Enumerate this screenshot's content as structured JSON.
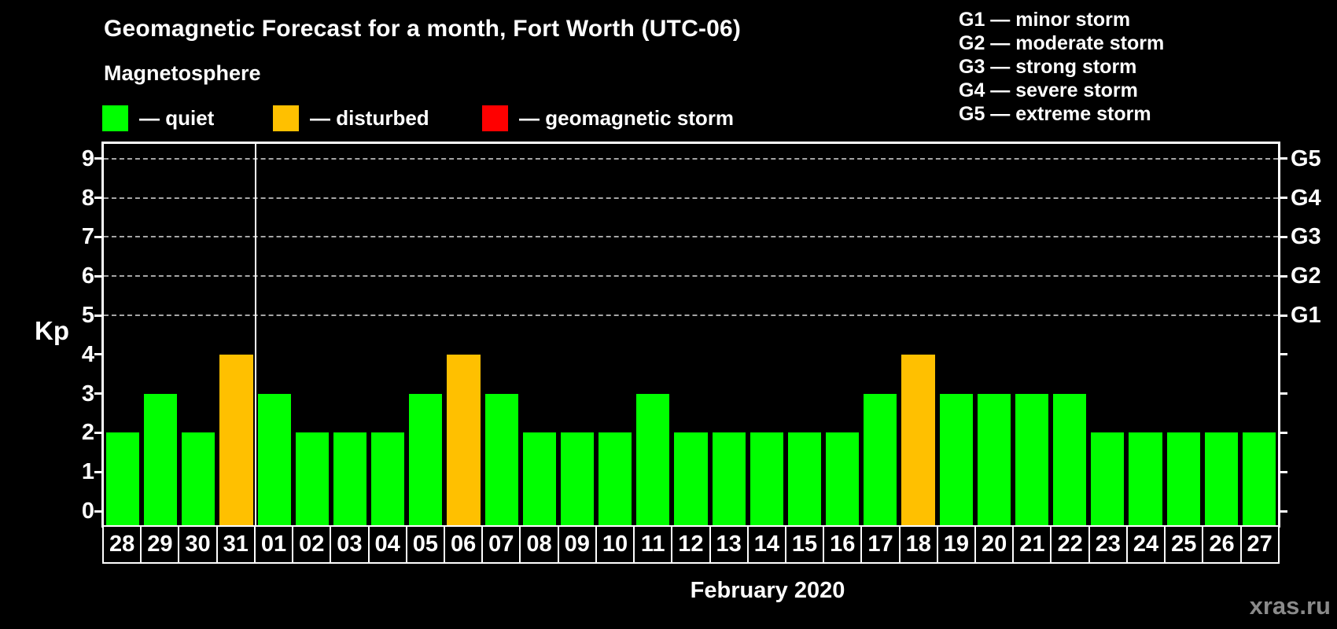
{
  "header": {
    "title": "Geomagnetic Forecast for a month, Fort Worth (UTC-06)",
    "subtitle": "Magnetosphere"
  },
  "legend": {
    "items": [
      {
        "status": "quiet",
        "label": "— quiet",
        "color": "#00ff00"
      },
      {
        "status": "disturbed",
        "label": "— disturbed",
        "color": "#ffc000"
      },
      {
        "status": "storm",
        "label": "— geomagnetic storm",
        "color": "#ff0000"
      }
    ]
  },
  "storm_scale_legend": {
    "items": [
      {
        "text": "G1 — minor storm"
      },
      {
        "text": "G2 — moderate storm"
      },
      {
        "text": "G3 — strong storm"
      },
      {
        "text": "G4 — severe storm"
      },
      {
        "text": "G5 — extreme storm"
      }
    ]
  },
  "watermark": "xras.ru",
  "colors": {
    "background": "#000000",
    "axis": "#ffffff",
    "grid": "#a6a6a6",
    "quiet": "#00ff00",
    "disturbed": "#ffc000",
    "storm": "#ff0000",
    "watermark_text": "#8a8a8a"
  },
  "chart_data": {
    "type": "bar",
    "title": "Geomagnetic Forecast for a month, Fort Worth (UTC-06)",
    "xlabel": "February 2020",
    "ylabel": "Kp",
    "ylim": [
      0,
      9
    ],
    "yticks": [
      0,
      1,
      2,
      3,
      4,
      5,
      6,
      7,
      8,
      9
    ],
    "grid_dashed_at_kp": [
      5,
      6,
      7,
      8,
      9
    ],
    "right_axis_labels": [
      {
        "kp": 5,
        "label": "G1"
      },
      {
        "kp": 6,
        "label": "G2"
      },
      {
        "kp": 7,
        "label": "G3"
      },
      {
        "kp": 8,
        "label": "G4"
      },
      {
        "kp": 9,
        "label": "G5"
      }
    ],
    "month_separator_after_index": 3,
    "days": [
      {
        "date": "28",
        "kp": 2,
        "status": "quiet"
      },
      {
        "date": "29",
        "kp": 3,
        "status": "quiet"
      },
      {
        "date": "30",
        "kp": 2,
        "status": "quiet"
      },
      {
        "date": "31",
        "kp": 4,
        "status": "disturbed"
      },
      {
        "date": "01",
        "kp": 3,
        "status": "quiet"
      },
      {
        "date": "02",
        "kp": 2,
        "status": "quiet"
      },
      {
        "date": "03",
        "kp": 2,
        "status": "quiet"
      },
      {
        "date": "04",
        "kp": 2,
        "status": "quiet"
      },
      {
        "date": "05",
        "kp": 3,
        "status": "quiet"
      },
      {
        "date": "06",
        "kp": 4,
        "status": "disturbed"
      },
      {
        "date": "07",
        "kp": 3,
        "status": "quiet"
      },
      {
        "date": "08",
        "kp": 2,
        "status": "quiet"
      },
      {
        "date": "09",
        "kp": 2,
        "status": "quiet"
      },
      {
        "date": "10",
        "kp": 2,
        "status": "quiet"
      },
      {
        "date": "11",
        "kp": 3,
        "status": "quiet"
      },
      {
        "date": "12",
        "kp": 2,
        "status": "quiet"
      },
      {
        "date": "13",
        "kp": 2,
        "status": "quiet"
      },
      {
        "date": "14",
        "kp": 2,
        "status": "quiet"
      },
      {
        "date": "15",
        "kp": 2,
        "status": "quiet"
      },
      {
        "date": "16",
        "kp": 2,
        "status": "quiet"
      },
      {
        "date": "17",
        "kp": 3,
        "status": "quiet"
      },
      {
        "date": "18",
        "kp": 4,
        "status": "disturbed"
      },
      {
        "date": "19",
        "kp": 3,
        "status": "quiet"
      },
      {
        "date": "20",
        "kp": 3,
        "status": "quiet"
      },
      {
        "date": "21",
        "kp": 3,
        "status": "quiet"
      },
      {
        "date": "22",
        "kp": 3,
        "status": "quiet"
      },
      {
        "date": "23",
        "kp": 2,
        "status": "quiet"
      },
      {
        "date": "24",
        "kp": 2,
        "status": "quiet"
      },
      {
        "date": "25",
        "kp": 2,
        "status": "quiet"
      },
      {
        "date": "26",
        "kp": 2,
        "status": "quiet"
      },
      {
        "date": "27",
        "kp": 2,
        "status": "quiet"
      }
    ]
  }
}
